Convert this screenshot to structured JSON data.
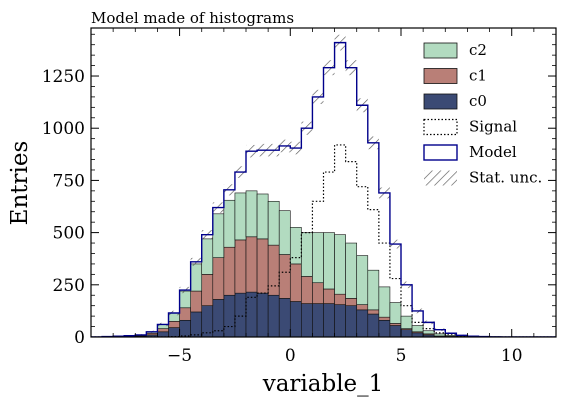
{
  "chart_data": {
    "type": "histogram",
    "title": "Model made of histograms",
    "xlabel": "variable_1",
    "ylabel": "Entries",
    "xlim": [
      -9,
      12
    ],
    "ylim": [
      0,
      1480
    ],
    "x_ticks": [
      -5,
      0,
      5,
      10
    ],
    "y_ticks": [
      0,
      250,
      500,
      750,
      1000,
      1250
    ],
    "x_tick_labels": [
      "−5",
      "0",
      "5",
      "10"
    ],
    "y_tick_labels": [
      "0",
      "250",
      "500",
      "750",
      "1000",
      "1250"
    ],
    "bin_edges": [
      -9.0,
      -8.5,
      -8.0,
      -7.5,
      -7.0,
      -6.5,
      -6.0,
      -5.5,
      -5.0,
      -4.5,
      -4.0,
      -3.5,
      -3.0,
      -2.5,
      -2.0,
      -1.5,
      -1.0,
      -0.5,
      0.0,
      0.5,
      1.0,
      1.5,
      2.0,
      2.5,
      3.0,
      3.5,
      4.0,
      4.5,
      5.0,
      5.5,
      6.0,
      6.5,
      7.0,
      7.5,
      8.0,
      8.5,
      9.0,
      9.5,
      10.0,
      10.5,
      11.0,
      11.5,
      12.0
    ],
    "stack": [
      {
        "name": "c0",
        "color": "#3b4a74",
        "values": [
          0,
          0,
          0,
          2,
          4,
          10,
          25,
          45,
          80,
          120,
          150,
          180,
          200,
          210,
          215,
          210,
          200,
          185,
          170,
          160,
          160,
          160,
          155,
          150,
          130,
          110,
          80,
          55,
          35,
          20,
          10,
          5,
          3,
          1,
          0,
          0,
          0,
          0,
          0,
          0,
          0,
          0
        ]
      },
      {
        "name": "c1",
        "color": "#b97f77",
        "values": [
          0,
          0,
          0,
          2,
          3,
          8,
          15,
          30,
          60,
          100,
          150,
          200,
          230,
          255,
          265,
          260,
          240,
          210,
          180,
          130,
          100,
          70,
          50,
          35,
          25,
          20,
          15,
          10,
          5,
          5,
          5,
          0,
          0,
          0,
          0,
          0,
          0,
          0,
          0,
          0,
          0,
          0
        ]
      },
      {
        "name": "c2",
        "color": "#b2dbc0",
        "values": [
          0,
          0,
          0,
          1,
          3,
          7,
          20,
          40,
          80,
          130,
          170,
          210,
          225,
          225,
          220,
          215,
          210,
          210,
          175,
          210,
          240,
          270,
          285,
          265,
          235,
          190,
          145,
          100,
          60,
          30,
          15,
          10,
          5,
          2,
          0,
          0,
          0,
          0,
          0,
          0,
          0,
          0
        ]
      }
    ],
    "signal": {
      "name": "Signal",
      "values": [
        0,
        0,
        0,
        0,
        0,
        0,
        0,
        2,
        5,
        10,
        20,
        30,
        50,
        100,
        190,
        210,
        245,
        310,
        380,
        500,
        650,
        790,
        920,
        840,
        720,
        610,
        450,
        280,
        150,
        70,
        40,
        20,
        10,
        4,
        2,
        0,
        0,
        0,
        0,
        0,
        0,
        0
      ]
    },
    "model": {
      "name": "Model",
      "color": "#00008b",
      "values": [
        0,
        2,
        4,
        6,
        10,
        25,
        60,
        115,
        225,
        360,
        490,
        620,
        705,
        790,
        890,
        895,
        895,
        915,
        905,
        1000,
        1150,
        1290,
        1410,
        1290,
        1110,
        930,
        690,
        445,
        250,
        125,
        70,
        35,
        18,
        8,
        4,
        2,
        1,
        0,
        0,
        0,
        0,
        0
      ]
    },
    "uncertainty": {
      "name": "Stat. unc."
    },
    "legend": {
      "position": "top-right",
      "entries": [
        {
          "name": "c2",
          "style": "fill"
        },
        {
          "name": "c1",
          "style": "fill"
        },
        {
          "name": "c0",
          "style": "fill"
        },
        {
          "name": "Signal",
          "style": "dotted"
        },
        {
          "name": "Model",
          "style": "outline"
        },
        {
          "name": "Stat. unc.",
          "style": "hatch"
        }
      ]
    },
    "grid": false
  }
}
